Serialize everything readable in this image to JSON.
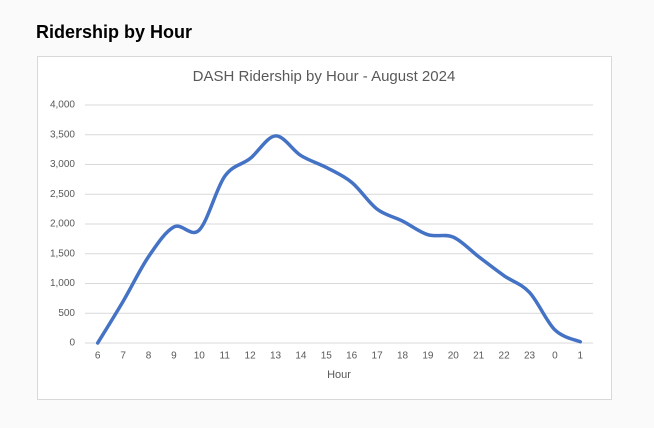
{
  "header": {
    "title": "Ridership by Hour"
  },
  "chart_data": {
    "type": "line",
    "title": "DASH Ridership by Hour - August 2024",
    "x_label": "Hour",
    "categories": [
      "6",
      "7",
      "8",
      "9",
      "10",
      "11",
      "12",
      "13",
      "14",
      "15",
      "16",
      "17",
      "18",
      "19",
      "20",
      "21",
      "22",
      "23",
      "0",
      "1"
    ],
    "series": [
      {
        "name": "Ridership",
        "color": "#4472c4",
        "values": [
          0,
          700,
          1450,
          1950,
          1900,
          2800,
          3100,
          3480,
          3150,
          2950,
          2700,
          2250,
          2050,
          1820,
          1780,
          1450,
          1130,
          850,
          220,
          20
        ]
      }
    ],
    "ylim": [
      0,
      4000
    ],
    "yticks": [
      0,
      500,
      {
        "value": 1000,
        "label": "1,000"
      },
      {
        "value": 1500,
        "label": "1,500"
      },
      {
        "value": 2000,
        "label": "2,000"
      },
      {
        "value": 2500,
        "label": "2,500"
      },
      {
        "value": 3000,
        "label": "3,000"
      },
      {
        "value": 3500,
        "label": "3,500"
      },
      {
        "value": 4000,
        "label": "4,000"
      }
    ],
    "grid": true
  }
}
